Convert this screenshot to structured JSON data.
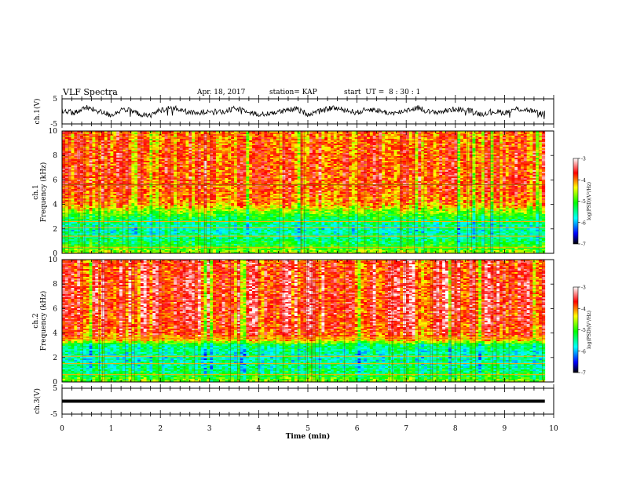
{
  "header": {
    "title": "VLF Spectra",
    "date": "Apr. 18, 2017",
    "station": "station= KAP",
    "start": "start  UT =  8 : 30 : 1"
  },
  "chart_data": [
    {
      "type": "line",
      "id": "ch1-waveform",
      "ylabel": "ch.1(V)",
      "ylim": [
        -5,
        5
      ],
      "yticks": [
        "5",
        "-5"
      ],
      "xlim": [
        0,
        10
      ],
      "series": [
        {
          "x": [
            0,
            0.25,
            0.5,
            0.75,
            1,
            1.25,
            1.5,
            1.75,
            2,
            2.25,
            2.5,
            2.75,
            3,
            3.25,
            3.5,
            3.75,
            4,
            4.25,
            4.5,
            4.75,
            5,
            5.25,
            5.5,
            5.75,
            6,
            6.25,
            6.5,
            6.75,
            7,
            7.25,
            7.5,
            7.75,
            8,
            8.25,
            8.5,
            8.75,
            9,
            9.25,
            9.5,
            9.75,
            9.82
          ],
          "y": [
            0.5,
            -0.5,
            1.5,
            0,
            -1.5,
            1,
            -0.5,
            -2,
            0.5,
            1.5,
            0,
            -1,
            0.5,
            -0.5,
            1,
            0.5,
            -1.5,
            -0.5,
            0,
            1,
            -1,
            0,
            1.5,
            0.5,
            -0.5,
            1,
            0,
            -1,
            0.5,
            1.5,
            -0.5,
            0,
            1,
            0.5,
            -1,
            0,
            -0.5,
            1,
            0.5,
            -1,
            -0.5
          ]
        }
      ]
    },
    {
      "type": "heatmap",
      "id": "ch1-spectrogram",
      "ylabel_top": "ch.1",
      "ylabel": "Frequency (kHz)",
      "ylim": [
        0,
        10
      ],
      "yticks": [
        "0",
        "2",
        "4",
        "6",
        "8",
        "10"
      ],
      "xlim": [
        0,
        9.82
      ],
      "colorbar": {
        "label": "log(PSD)(V²/Hz)",
        "ticks": [
          "-3",
          "-4",
          "-5",
          "-6",
          "-7"
        ],
        "range": [
          -7,
          -3
        ]
      },
      "level_profile": {
        "freq_khz": [
          0,
          0.5,
          1,
          1.5,
          2,
          2.5,
          3,
          3.5,
          4,
          5,
          6,
          7,
          8,
          9,
          10
        ],
        "log_psd": [
          -4.6,
          -5.0,
          -5.3,
          -5.5,
          -5.6,
          -5.4,
          -5.1,
          -4.6,
          -4.1,
          -3.85,
          -3.8,
          -3.8,
          -3.85,
          -3.9,
          -3.95
        ]
      }
    },
    {
      "type": "heatmap",
      "id": "ch2-spectrogram",
      "ylabel_top": "ch.2",
      "ylabel": "Frequency (kHz)",
      "ylim": [
        0,
        10
      ],
      "yticks": [
        "0",
        "2",
        "4",
        "6",
        "8",
        "10"
      ],
      "xlim": [
        0,
        9.82
      ],
      "colorbar": {
        "label": "log(PSD)(V²/Hz)",
        "ticks": [
          "-3",
          "-4",
          "-5",
          "-6",
          "-7"
        ],
        "range": [
          -7,
          -3
        ]
      },
      "level_profile": {
        "freq_khz": [
          0,
          0.5,
          1,
          1.5,
          2,
          2.5,
          3,
          3.5,
          4,
          5,
          6,
          7,
          8,
          9,
          10
        ],
        "log_psd": [
          -4.7,
          -5.1,
          -5.4,
          -5.5,
          -5.6,
          -5.5,
          -5.3,
          -4.0,
          -3.75,
          -3.65,
          -3.6,
          -3.6,
          -3.62,
          -3.65,
          -3.7
        ]
      }
    },
    {
      "type": "line",
      "id": "ch3-waveform",
      "ylabel": "ch.3(V)",
      "ylim": [
        -5,
        5
      ],
      "yticks": [
        "5",
        "-5"
      ],
      "xlim": [
        0,
        10
      ],
      "xlabel": "Time (min)",
      "xticks": [
        "0",
        "1",
        "2",
        "3",
        "4",
        "5",
        "6",
        "7",
        "8",
        "9",
        "10"
      ],
      "series": [
        {
          "x": [
            0,
            9.82
          ],
          "y": [
            0,
            0
          ]
        }
      ]
    }
  ]
}
